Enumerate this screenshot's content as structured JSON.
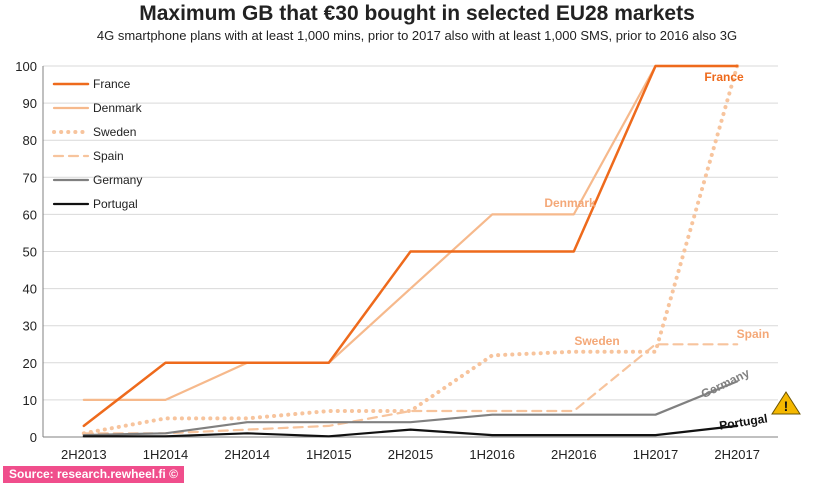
{
  "header": {
    "title": "Maximum GB that €30 bought in selected EU28 markets",
    "subtitle": "4G smartphone plans with at least 1,000 mins, prior to 2017 also with at least 1,000 SMS, prior to 2016 also 3G"
  },
  "footer": {
    "source": "Source: research.rewheel.fi  ©"
  },
  "warning_icon": "warning-triangle-icon",
  "chart_data": {
    "type": "line",
    "title": "Maximum GB that €30 bought in selected EU28 markets",
    "subtitle": "4G smartphone plans with at least 1,000 mins, prior to 2017 also with at least 1,000 SMS, prior to 2016 also 3G",
    "xlabel": "",
    "ylabel": "",
    "categories": [
      "2H2013",
      "1H2014",
      "2H2014",
      "1H2015",
      "2H2015",
      "1H2016",
      "2H2016",
      "1H2017",
      "2H2017"
    ],
    "ylim": [
      0,
      100
    ],
    "yticks": [
      0,
      10,
      20,
      30,
      40,
      50,
      60,
      70,
      80,
      90,
      100
    ],
    "grid": true,
    "legend_position": "top-left",
    "step_series": [
      "France"
    ],
    "series": [
      {
        "name": "France",
        "color": "#ee6a1c",
        "style": "solid",
        "width": 2.5,
        "label": "France",
        "label_color": "#ee6a1c",
        "values": [
          3,
          20,
          20,
          20,
          50,
          50,
          50,
          100,
          100
        ]
      },
      {
        "name": "Denmark",
        "color": "#f6b98c",
        "style": "solid",
        "width": 2.2,
        "label": "Denmark",
        "label_color": "#f4a878",
        "values": [
          10,
          10,
          20,
          20,
          40,
          60,
          60,
          100,
          100
        ]
      },
      {
        "name": "Sweden",
        "color": "#f7c49d",
        "style": "dotted",
        "width": 4,
        "label": "Sweden",
        "label_color": "#f4a878",
        "values": [
          1,
          5,
          5,
          7,
          7,
          22,
          23,
          23,
          100
        ]
      },
      {
        "name": "Spain",
        "color": "#f7c49d",
        "style": "dashed",
        "width": 2.2,
        "label": "Spain",
        "label_color": "#f4a878",
        "values": [
          1,
          1,
          2,
          3,
          7,
          7,
          7,
          25,
          25
        ]
      },
      {
        "name": "Germany",
        "color": "#808080",
        "style": "solid",
        "width": 2.2,
        "label": "Germany",
        "label_color": "#808080",
        "values": [
          0.5,
          1,
          4,
          4,
          4,
          6,
          6,
          6,
          15
        ]
      },
      {
        "name": "Portugal",
        "color": "#111111",
        "style": "solid",
        "width": 2.2,
        "label": "Portugal",
        "label_color": "#111111",
        "values": [
          0.2,
          0.2,
          1,
          0.2,
          2,
          0.5,
          0.5,
          0.5,
          3
        ]
      }
    ]
  }
}
